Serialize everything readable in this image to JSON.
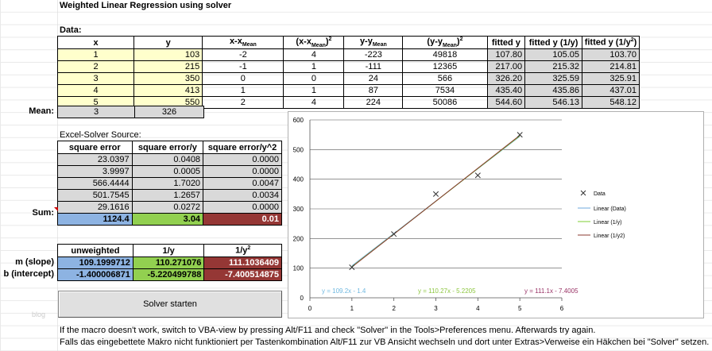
{
  "page": {
    "title": "Weighted Linear Regression using solver",
    "data_label": "Data:",
    "watermark": "blog"
  },
  "data_table": {
    "headers": [
      "x",
      "y",
      "x-x",
      "(x-x",
      "y-y",
      "(y-y",
      "fitted y",
      "fitted y (1/y)",
      "fitted y (1/y"
    ],
    "mean_sub": "Mean",
    "sup2": "2",
    "rows": [
      [
        "1",
        "103",
        "-2",
        "4",
        "-223",
        "49818",
        "107.80",
        "105.05",
        "103.70"
      ],
      [
        "2",
        "215",
        "-1",
        "1",
        "-111",
        "12365",
        "217.00",
        "215.32",
        "214.81"
      ],
      [
        "3",
        "350",
        "0",
        "0",
        "24",
        "566",
        "326.20",
        "325.59",
        "325.91"
      ],
      [
        "4",
        "413",
        "1",
        "1",
        "87",
        "7534",
        "435.40",
        "435.86",
        "437.01"
      ],
      [
        "5",
        "550",
        "2",
        "4",
        "224",
        "50086",
        "544.60",
        "546.13",
        "548.12"
      ]
    ],
    "mean_label": "Mean:",
    "mean_x": "3",
    "mean_y": "326"
  },
  "solver_table": {
    "caption": "Excel-Solver Source:",
    "headers": [
      "square error",
      "square error/y",
      "square error/y^2"
    ],
    "rows": [
      [
        "23.0397",
        "0.0408",
        "0.0000"
      ],
      [
        "3.9997",
        "0.0005",
        "0.0000"
      ],
      [
        "566.4444",
        "1.7020",
        "0.0047"
      ],
      [
        "501.7545",
        "1.2657",
        "0.0034"
      ],
      [
        "29.1616",
        "0.0272",
        "0.0000"
      ]
    ],
    "sum_label": "Sum:",
    "sums": [
      "1124.4",
      "3.04",
      "0.01"
    ]
  },
  "params_table": {
    "headers": [
      "unweighted",
      "1/y",
      "1/y"
    ],
    "slope_label": "m (slope)",
    "intercept_label": "b (intercept)",
    "slope": [
      "109.1999712",
      "110.271076",
      "111.1036409"
    ],
    "intercept": [
      "-1.400006871",
      "-5.220499788",
      "-7.400514875"
    ]
  },
  "button": {
    "label": "Solver starten"
  },
  "notes": {
    "line1": "If the macro doesn't work, switch to VBA-view by pressing Alt/F11 and check \"Solver\" in the Tools>Preferences menu. Afterwards try again.",
    "line2": "Falls das eingebettete Makro nicht funktioniert per Tastenkombination Alt/F11 zur VB Ansicht wechseln und dort unter Extras>Verweise ein Häkchen bei \"Solver\" setzen."
  },
  "colors": {
    "data": "#333333",
    "lin_data": "#6fa8dc",
    "lin_1y": "#7ccc33",
    "lin_1y2": "#8b3a2f",
    "eq1": "#6fb8e0",
    "eq2": "#8cc63f",
    "eq3": "#993366"
  },
  "chart_data": {
    "type": "scatter",
    "x": [
      1,
      2,
      3,
      4,
      5
    ],
    "y": [
      103,
      215,
      350,
      413,
      550
    ],
    "xlim": [
      0,
      6
    ],
    "ylim": [
      0,
      600
    ],
    "xticks": [
      "0",
      "1",
      "2",
      "3",
      "4",
      "5",
      "6"
    ],
    "yticks": [
      "0",
      "100",
      "200",
      "300",
      "400",
      "500",
      "600"
    ],
    "series": [
      {
        "name": "Data",
        "kind": "points"
      },
      {
        "name": "Linear (Data)",
        "slope": 109.2,
        "intercept": -1.4
      },
      {
        "name": "Linear (1/y)",
        "slope": 110.27,
        "intercept": -5.2205
      },
      {
        "name": "Linear (1/y2)",
        "slope": 111.1,
        "intercept": -7.4005
      }
    ],
    "equations": [
      "y = 109.2x - 1.4",
      "y = 110.27x - 5.2205",
      "y = 111.1x - 7.4005"
    ]
  }
}
